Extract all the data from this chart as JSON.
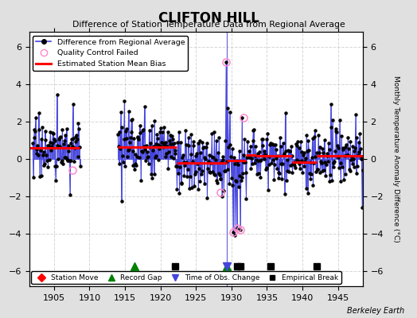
{
  "title": "CLIFTON HILL",
  "subtitle": "Difference of Station Temperature Data from Regional Average",
  "ylabel_right": "Monthly Temperature Anomaly Difference (°C)",
  "credit": "Berkeley Earth",
  "xlim": [
    1901.5,
    1948.5
  ],
  "ylim": [
    -6.8,
    6.8
  ],
  "yticks": [
    -6,
    -4,
    -2,
    0,
    2,
    4,
    6
  ],
  "xticks": [
    1905,
    1910,
    1915,
    1920,
    1925,
    1930,
    1935,
    1940,
    1945
  ],
  "bg_color": "#e0e0e0",
  "plot_bg_color": "#ffffff",
  "grid_color": "#cccccc",
  "segments": [
    {
      "xstart": 1901.5,
      "xend": 1908.6,
      "bias": 0.6
    },
    {
      "xstart": 1914.0,
      "xend": 1922.3,
      "bias": 0.65
    },
    {
      "xstart": 1922.3,
      "xend": 1929.3,
      "bias": -0.22
    },
    {
      "xstart": 1929.3,
      "xend": 1932.0,
      "bias": -0.08
    },
    {
      "xstart": 1932.0,
      "xend": 1933.5,
      "bias": 0.2
    },
    {
      "xstart": 1933.5,
      "xend": 1938.5,
      "bias": 0.18
    },
    {
      "xstart": 1938.5,
      "xend": 1942.0,
      "bias": -0.18
    },
    {
      "xstart": 1942.0,
      "xend": 1948.5,
      "bias": 0.18
    }
  ],
  "record_gaps": [
    1916.3,
    1929.3
  ],
  "time_obs_changes": [
    1929.3
  ],
  "empirical_breaks": [
    1922.0,
    1930.8,
    1931.3,
    1935.5,
    1942.0
  ],
  "qc_failed_x": [
    1907.6,
    1928.4,
    1929.25,
    1930.25,
    1930.75,
    1931.25,
    1931.75
  ],
  "qc_failed_y": [
    -0.6,
    -1.8,
    5.2,
    -3.9,
    -3.7,
    -3.8,
    2.2
  ],
  "seed": 17,
  "noise_scale": 0.85,
  "line_color": "#4444dd",
  "dot_color": "black",
  "bias_color": "red",
  "qc_color": "#ff88cc",
  "marker_y": -5.75
}
